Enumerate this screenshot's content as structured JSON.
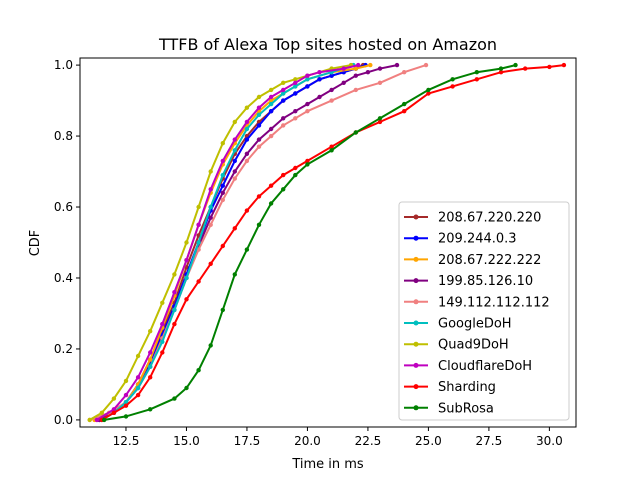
{
  "chart_data": {
    "type": "line",
    "title": "TTFB of Alexa Top sites hosted on Amazon",
    "xlabel": "Time in ms",
    "ylabel": "CDF",
    "xlim": [
      10.6,
      31.1
    ],
    "ylim": [
      -0.02,
      1.02
    ],
    "xticks": [
      "12.5",
      "15.0",
      "17.5",
      "20.0",
      "22.5",
      "25.0",
      "27.5",
      "30.0"
    ],
    "xtick_values": [
      12.5,
      15.0,
      17.5,
      20.0,
      22.5,
      25.0,
      27.5,
      30.0
    ],
    "yticks": [
      "0.0",
      "0.2",
      "0.4",
      "0.6",
      "0.8",
      "1.0"
    ],
    "ytick_values": [
      0.0,
      0.2,
      0.4,
      0.6,
      0.8,
      1.0
    ],
    "legend_position": "lower-right",
    "grid": false,
    "series": [
      {
        "name": "208.67.220.220",
        "color": "#a52a2a",
        "points": [
          [
            11.3,
            0.0
          ],
          [
            12.0,
            0.02
          ],
          [
            12.5,
            0.05
          ],
          [
            13.0,
            0.1
          ],
          [
            13.5,
            0.17
          ],
          [
            14.0,
            0.25
          ],
          [
            14.5,
            0.33
          ],
          [
            15.0,
            0.43
          ],
          [
            15.5,
            0.52
          ],
          [
            16.0,
            0.6
          ],
          [
            16.5,
            0.68
          ],
          [
            17.0,
            0.75
          ],
          [
            17.5,
            0.8
          ],
          [
            18.0,
            0.84
          ],
          [
            18.5,
            0.87
          ],
          [
            19.0,
            0.9
          ],
          [
            19.5,
            0.92
          ],
          [
            20.0,
            0.94
          ],
          [
            20.5,
            0.96
          ],
          [
            21.0,
            0.97
          ],
          [
            21.5,
            0.98
          ],
          [
            22.0,
            0.99
          ],
          [
            22.3,
            1.0
          ]
        ]
      },
      {
        "name": "209.244.0.3",
        "color": "#0000ff",
        "points": [
          [
            11.4,
            0.0
          ],
          [
            12.0,
            0.02
          ],
          [
            12.5,
            0.05
          ],
          [
            13.0,
            0.1
          ],
          [
            13.5,
            0.16
          ],
          [
            14.0,
            0.24
          ],
          [
            14.5,
            0.32
          ],
          [
            15.0,
            0.41
          ],
          [
            15.5,
            0.5
          ],
          [
            16.0,
            0.59
          ],
          [
            16.5,
            0.66
          ],
          [
            17.0,
            0.73
          ],
          [
            17.5,
            0.79
          ],
          [
            18.0,
            0.83
          ],
          [
            18.5,
            0.87
          ],
          [
            19.0,
            0.9
          ],
          [
            19.5,
            0.92
          ],
          [
            20.0,
            0.94
          ],
          [
            20.5,
            0.96
          ],
          [
            21.0,
            0.97
          ],
          [
            21.5,
            0.98
          ],
          [
            22.0,
            0.99
          ],
          [
            22.4,
            1.0
          ]
        ]
      },
      {
        "name": "208.67.222.222",
        "color": "#ffa500",
        "points": [
          [
            11.2,
            0.0
          ],
          [
            12.0,
            0.02
          ],
          [
            12.5,
            0.05
          ],
          [
            13.0,
            0.1
          ],
          [
            13.5,
            0.17
          ],
          [
            14.0,
            0.26
          ],
          [
            14.5,
            0.35
          ],
          [
            15.0,
            0.45
          ],
          [
            15.5,
            0.55
          ],
          [
            16.0,
            0.64
          ],
          [
            16.5,
            0.72
          ],
          [
            17.0,
            0.78
          ],
          [
            17.5,
            0.83
          ],
          [
            18.0,
            0.87
          ],
          [
            18.5,
            0.9
          ],
          [
            19.0,
            0.92
          ],
          [
            19.5,
            0.94
          ],
          [
            20.0,
            0.96
          ],
          [
            21.0,
            0.98
          ],
          [
            22.0,
            0.99
          ],
          [
            22.6,
            1.0
          ]
        ]
      },
      {
        "name": "199.85.126.10",
        "color": "#800080",
        "points": [
          [
            11.4,
            0.0
          ],
          [
            12.0,
            0.02
          ],
          [
            12.5,
            0.05
          ],
          [
            13.0,
            0.09
          ],
          [
            13.5,
            0.15
          ],
          [
            14.0,
            0.23
          ],
          [
            14.5,
            0.31
          ],
          [
            15.0,
            0.4
          ],
          [
            15.5,
            0.49
          ],
          [
            16.0,
            0.57
          ],
          [
            16.5,
            0.64
          ],
          [
            17.0,
            0.7
          ],
          [
            17.5,
            0.75
          ],
          [
            18.0,
            0.79
          ],
          [
            18.5,
            0.82
          ],
          [
            19.0,
            0.85
          ],
          [
            19.5,
            0.87
          ],
          [
            20.0,
            0.89
          ],
          [
            20.5,
            0.91
          ],
          [
            21.0,
            0.93
          ],
          [
            21.5,
            0.95
          ],
          [
            22.0,
            0.97
          ],
          [
            22.5,
            0.98
          ],
          [
            23.0,
            0.99
          ],
          [
            23.7,
            1.0
          ]
        ]
      },
      {
        "name": "149.112.112.112",
        "color": "#f08080",
        "points": [
          [
            11.0,
            0.0
          ],
          [
            11.8,
            0.02
          ],
          [
            12.5,
            0.05
          ],
          [
            13.0,
            0.09
          ],
          [
            13.5,
            0.15
          ],
          [
            14.0,
            0.23
          ],
          [
            14.5,
            0.31
          ],
          [
            15.0,
            0.4
          ],
          [
            15.5,
            0.48
          ],
          [
            16.0,
            0.55
          ],
          [
            16.5,
            0.62
          ],
          [
            17.0,
            0.68
          ],
          [
            17.5,
            0.73
          ],
          [
            18.0,
            0.77
          ],
          [
            18.5,
            0.8
          ],
          [
            19.0,
            0.83
          ],
          [
            19.5,
            0.85
          ],
          [
            20.0,
            0.87
          ],
          [
            21.0,
            0.9
          ],
          [
            22.0,
            0.93
          ],
          [
            23.0,
            0.95
          ],
          [
            24.0,
            0.98
          ],
          [
            24.9,
            1.0
          ]
        ]
      },
      {
        "name": "GoogleDoH",
        "color": "#00bfbf",
        "points": [
          [
            11.5,
            0.0
          ],
          [
            12.0,
            0.02
          ],
          [
            12.5,
            0.05
          ],
          [
            13.0,
            0.09
          ],
          [
            13.5,
            0.15
          ],
          [
            14.0,
            0.22
          ],
          [
            14.5,
            0.31
          ],
          [
            15.0,
            0.4
          ],
          [
            15.5,
            0.5
          ],
          [
            16.0,
            0.6
          ],
          [
            16.5,
            0.69
          ],
          [
            17.0,
            0.76
          ],
          [
            17.5,
            0.82
          ],
          [
            18.0,
            0.86
          ],
          [
            18.5,
            0.89
          ],
          [
            19.0,
            0.92
          ],
          [
            19.5,
            0.94
          ],
          [
            20.0,
            0.96
          ],
          [
            21.0,
            0.98
          ],
          [
            21.9,
            1.0
          ]
        ]
      },
      {
        "name": "Quad9DoH",
        "color": "#bfbf00",
        "points": [
          [
            11.0,
            0.0
          ],
          [
            11.5,
            0.02
          ],
          [
            12.0,
            0.06
          ],
          [
            12.5,
            0.11
          ],
          [
            13.0,
            0.18
          ],
          [
            13.5,
            0.25
          ],
          [
            14.0,
            0.33
          ],
          [
            14.5,
            0.41
          ],
          [
            15.0,
            0.5
          ],
          [
            15.5,
            0.6
          ],
          [
            16.0,
            0.7
          ],
          [
            16.5,
            0.78
          ],
          [
            17.0,
            0.84
          ],
          [
            17.5,
            0.88
          ],
          [
            18.0,
            0.91
          ],
          [
            18.5,
            0.93
          ],
          [
            19.0,
            0.95
          ],
          [
            19.5,
            0.96
          ],
          [
            20.0,
            0.97
          ],
          [
            21.0,
            0.99
          ],
          [
            21.8,
            1.0
          ]
        ]
      },
      {
        "name": "CloudflareDoH",
        "color": "#bf00bf",
        "points": [
          [
            11.3,
            0.0
          ],
          [
            12.0,
            0.03
          ],
          [
            12.5,
            0.07
          ],
          [
            13.0,
            0.12
          ],
          [
            13.5,
            0.19
          ],
          [
            14.0,
            0.27
          ],
          [
            14.5,
            0.36
          ],
          [
            15.0,
            0.45
          ],
          [
            15.5,
            0.55
          ],
          [
            16.0,
            0.65
          ],
          [
            16.5,
            0.73
          ],
          [
            17.0,
            0.79
          ],
          [
            17.5,
            0.84
          ],
          [
            18.0,
            0.88
          ],
          [
            18.5,
            0.91
          ],
          [
            19.0,
            0.93
          ],
          [
            19.5,
            0.95
          ],
          [
            20.0,
            0.97
          ],
          [
            20.5,
            0.98
          ],
          [
            21.5,
            0.99
          ],
          [
            22.1,
            1.0
          ]
        ]
      },
      {
        "name": "Sharding",
        "color": "#ff0000",
        "points": [
          [
            11.5,
            0.0
          ],
          [
            12.0,
            0.02
          ],
          [
            12.5,
            0.04
          ],
          [
            13.0,
            0.07
          ],
          [
            13.5,
            0.12
          ],
          [
            14.0,
            0.19
          ],
          [
            14.5,
            0.27
          ],
          [
            15.0,
            0.34
          ],
          [
            15.5,
            0.39
          ],
          [
            16.0,
            0.44
          ],
          [
            16.5,
            0.49
          ],
          [
            17.0,
            0.54
          ],
          [
            17.5,
            0.59
          ],
          [
            18.0,
            0.63
          ],
          [
            18.5,
            0.66
          ],
          [
            19.0,
            0.69
          ],
          [
            19.5,
            0.71
          ],
          [
            20.0,
            0.73
          ],
          [
            21.0,
            0.77
          ],
          [
            22.0,
            0.81
          ],
          [
            23.0,
            0.84
          ],
          [
            24.0,
            0.87
          ],
          [
            25.0,
            0.92
          ],
          [
            26.0,
            0.94
          ],
          [
            27.0,
            0.96
          ],
          [
            28.0,
            0.98
          ],
          [
            29.0,
            0.99
          ],
          [
            30.0,
            0.995
          ],
          [
            30.6,
            1.0
          ]
        ]
      },
      {
        "name": "SubRosa",
        "color": "#008000",
        "points": [
          [
            11.6,
            0.0
          ],
          [
            12.5,
            0.01
          ],
          [
            13.5,
            0.03
          ],
          [
            14.5,
            0.06
          ],
          [
            15.0,
            0.09
          ],
          [
            15.5,
            0.14
          ],
          [
            16.0,
            0.21
          ],
          [
            16.5,
            0.31
          ],
          [
            17.0,
            0.41
          ],
          [
            17.5,
            0.48
          ],
          [
            18.0,
            0.55
          ],
          [
            18.5,
            0.61
          ],
          [
            19.0,
            0.65
          ],
          [
            19.5,
            0.69
          ],
          [
            20.0,
            0.72
          ],
          [
            21.0,
            0.76
          ],
          [
            22.0,
            0.81
          ],
          [
            23.0,
            0.85
          ],
          [
            24.0,
            0.89
          ],
          [
            25.0,
            0.93
          ],
          [
            26.0,
            0.96
          ],
          [
            27.0,
            0.98
          ],
          [
            28.0,
            0.99
          ],
          [
            28.6,
            1.0
          ]
        ]
      }
    ]
  }
}
